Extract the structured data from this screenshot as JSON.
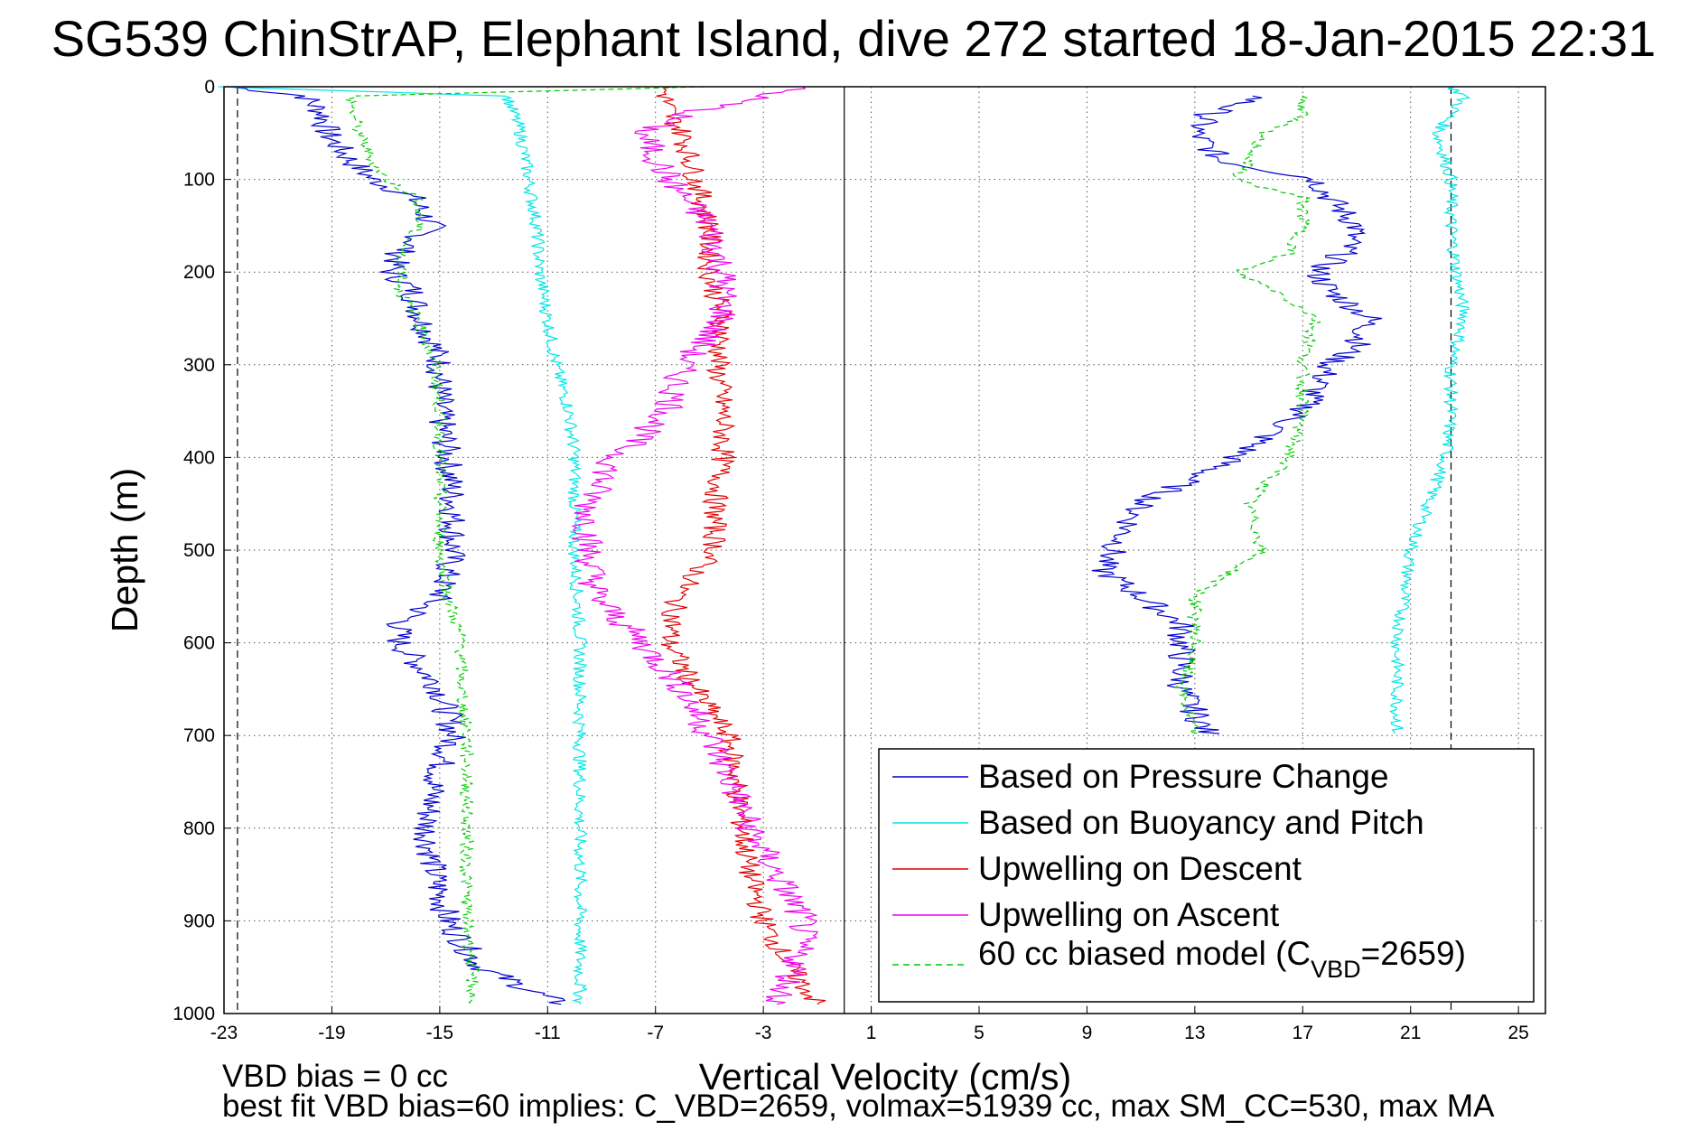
{
  "chart_data": {
    "type": "line",
    "title": "SG539 ChinStrAP, Elephant Island, dive 272 started 18-Jan-2015 22:31",
    "xlabel": "Vertical Velocity (cm/s)",
    "ylabel": "Depth (m)",
    "xlim": [
      -23,
      26
    ],
    "ylim": [
      1000,
      0
    ],
    "y_reversed": true,
    "grid": true,
    "legend_position": "bottom-right",
    "x_ticks": [
      -23,
      -19,
      -15,
      -11,
      -7,
      -3,
      1,
      5,
      9,
      13,
      17,
      21,
      25
    ],
    "y_ticks": [
      0,
      100,
      200,
      300,
      400,
      500,
      600,
      700,
      800,
      900,
      1000
    ],
    "reference_lines": {
      "zero_velocity": 0,
      "dashed_limits": [
        -22.5,
        22.5
      ]
    },
    "legend_lines": [
      "Based on Pressure Change",
      "Based on Buoyancy and Pitch",
      "Upwelling on Descent",
      "Upwelling on Ascent",
      "60 cc biased model (C",
      "VBD",
      "=2659)"
    ],
    "series": [
      {
        "name": "Based on Pressure Change",
        "color": "#0000cc",
        "style": "solid",
        "depth": [
          0,
          10,
          30,
          50,
          80,
          100,
          120,
          150,
          180,
          200,
          220,
          250,
          280,
          300,
          350,
          400,
          450,
          500,
          520,
          550,
          580,
          600,
          650,
          700,
          750,
          800,
          850,
          900,
          950,
          990
        ],
        "descent": [
          -22.8,
          -20,
          -19.3,
          -19.2,
          -18.3,
          -17.5,
          -16,
          -15.3,
          -16.5,
          -16.8,
          -16,
          -15.7,
          -15.2,
          -15,
          -15,
          -14.7,
          -14.5,
          -14.5,
          -14.7,
          -15,
          -16.5,
          -16.5,
          -15,
          -14.5,
          -15.2,
          -15.5,
          -15.2,
          -14.7,
          -13.5,
          -10.5
        ],
        "ascent": [
          null,
          15.5,
          13.5,
          13,
          14,
          17.5,
          18,
          19,
          18.5,
          17.5,
          18,
          19.5,
          19,
          18,
          17,
          14.5,
          11,
          10,
          9.5,
          11,
          12.5,
          12.5,
          12.5,
          13.5,
          null,
          null,
          null,
          null,
          null,
          null
        ]
      },
      {
        "name": "Based on Buoyancy and Pitch",
        "color": "#00e5e5",
        "style": "solid",
        "depth": [
          0,
          10,
          50,
          100,
          150,
          200,
          250,
          300,
          350,
          400,
          500,
          600,
          700,
          800,
          900,
          990
        ],
        "descent": [
          -23,
          -12.5,
          -12,
          -11.7,
          -11.4,
          -11.3,
          -11,
          -10.7,
          -10.2,
          -10,
          -10,
          -9.8,
          -9.8,
          -9.8,
          -9.8,
          -9.8
        ],
        "ascent": [
          22.5,
          23,
          22,
          22.5,
          22.5,
          22.7,
          23,
          22.5,
          22.5,
          22.3,
          21,
          20.5,
          20.5,
          null,
          null,
          null
        ]
      },
      {
        "name": "Upwelling on Descent",
        "color": "#e00000",
        "style": "solid",
        "depth": [
          0,
          30,
          50,
          100,
          150,
          200,
          250,
          300,
          350,
          400,
          450,
          500,
          550,
          600,
          650,
          700,
          750,
          800,
          850,
          900,
          950,
          990
        ],
        "values": [
          -6.7,
          -6.5,
          -6,
          -5.5,
          -5,
          -5,
          -4.5,
          -4.7,
          -4.5,
          -4.5,
          -4.8,
          -4.8,
          -6.2,
          -6.5,
          -5.5,
          -4.3,
          -4,
          -3.8,
          -3.5,
          -3,
          -2,
          -1
        ]
      },
      {
        "name": "Upwelling on Ascent",
        "color": "#ee00ee",
        "style": "solid",
        "depth": [
          0,
          30,
          50,
          100,
          150,
          200,
          250,
          300,
          350,
          400,
          450,
          500,
          550,
          600,
          650,
          700,
          750,
          800,
          850,
          900,
          950,
          990
        ],
        "values": [
          -1.5,
          -6,
          -7.5,
          -6.5,
          -5,
          -4.5,
          -4.5,
          -6,
          -6.5,
          -8.5,
          -9.5,
          -9.5,
          -9.2,
          -7.5,
          -6,
          -5,
          -4.2,
          -3.5,
          -2.5,
          -1.5,
          -1.8,
          -2.5
        ]
      },
      {
        "name": "60 cc biased model (CVBD=2659)",
        "color": "#00cc00",
        "style": "dashed",
        "depth": [
          0,
          10,
          30,
          50,
          80,
          100,
          120,
          150,
          180,
          200,
          220,
          250,
          300,
          350,
          400,
          450,
          500,
          550,
          600,
          650,
          700,
          800,
          900,
          950,
          990
        ],
        "descent": [
          -5,
          -18.3,
          -18.2,
          -18,
          -17.5,
          -17,
          -15.8,
          -15.8,
          -16.5,
          -16.3,
          -16.5,
          -15.8,
          -15.2,
          -15,
          -15,
          -15,
          -15,
          -14.7,
          -14.2,
          -14.2,
          -14,
          -14,
          -14,
          -13.8,
          -13.8
        ],
        "ascent": [
          null,
          17,
          17,
          15.5,
          15,
          14.5,
          17,
          17,
          16.5,
          14.5,
          16,
          17.5,
          17,
          17,
          16.5,
          15,
          15.5,
          13,
          13,
          12.5,
          13,
          null,
          null,
          null,
          null
        ]
      }
    ],
    "footnotes": [
      "VBD bias = 0 cc",
      "best fit VBD bias=60 implies: C_VBD=2659, volmax=51939 cc, max SM_CC=530, max MA"
    ]
  }
}
